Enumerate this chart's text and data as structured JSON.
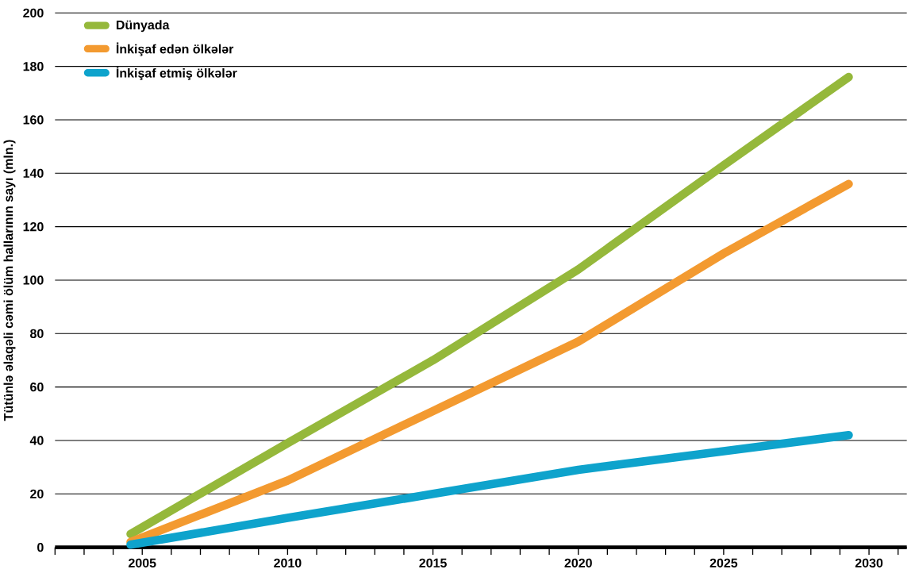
{
  "chart_data": {
    "type": "line",
    "ylabel": "Tütünlə əlaqəli cəmi ölüm hallarının sayı  (mln.)",
    "x": [
      2004.6,
      2010,
      2015,
      2020,
      2025,
      2029.3
    ],
    "series": [
      {
        "name": "Dünyada",
        "color": "#95b83b",
        "values": [
          5,
          39,
          70,
          104,
          143,
          176
        ]
      },
      {
        "name": "İnkişaf edən ölkələr",
        "color": "#f39a30",
        "values": [
          2,
          25,
          51,
          77,
          110,
          136
        ]
      },
      {
        "name": "İnkişaf etmiş ölkələr",
        "color": "#0ea3cc",
        "values": [
          1,
          11,
          20,
          29,
          36,
          42
        ]
      }
    ],
    "xlim": [
      2002,
      2031.3
    ],
    "ylim": [
      0,
      200
    ],
    "xticks": [
      {
        "value": 2002,
        "label": null
      },
      {
        "value": 2003,
        "label": null
      },
      {
        "value": 2004,
        "label": null
      },
      2005,
      {
        "value": 2006,
        "label": null
      },
      {
        "value": 2007,
        "label": null
      },
      {
        "value": 2008,
        "label": null
      },
      {
        "value": 2009,
        "label": null
      },
      2010,
      {
        "value": 2011,
        "label": null
      },
      {
        "value": 2012,
        "label": null
      },
      {
        "value": 2013,
        "label": null
      },
      {
        "value": 2014,
        "label": null
      },
      2015,
      {
        "value": 2016,
        "label": null
      },
      {
        "value": 2017,
        "label": null
      },
      {
        "value": 2018,
        "label": null
      },
      {
        "value": 2019,
        "label": null
      },
      2020,
      {
        "value": 2021,
        "label": null
      },
      {
        "value": 2022,
        "label": null
      },
      {
        "value": 2023,
        "label": null
      },
      {
        "value": 2024,
        "label": null
      },
      2025,
      {
        "value": 2026,
        "label": null
      },
      {
        "value": 2027,
        "label": null
      },
      {
        "value": 2028,
        "label": null
      },
      {
        "value": 2029,
        "label": null
      },
      2030,
      {
        "value": 2031,
        "label": null
      }
    ],
    "yticks": [
      0,
      20,
      40,
      60,
      80,
      100,
      120,
      140,
      160,
      180,
      200
    ],
    "grid": "y",
    "legend": "top left",
    "marker": "none",
    "line_style": "solid"
  }
}
